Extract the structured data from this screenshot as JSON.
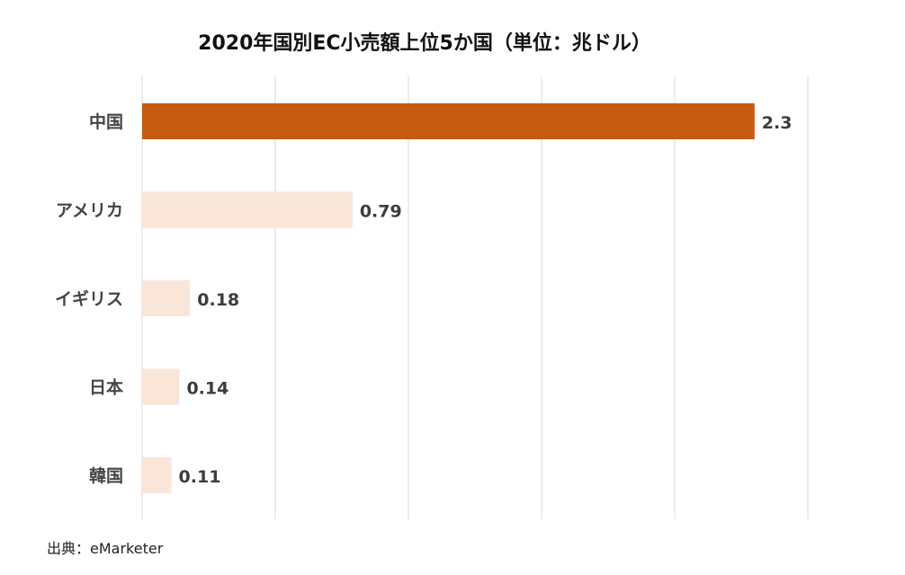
{
  "chart_data": {
    "type": "bar",
    "orientation": "horizontal",
    "title": "2020年国別EC小売額上位5か国（単位：兆ドル）",
    "categories": [
      "中国",
      "アメリカ",
      "イギリス",
      "日本",
      "韓国"
    ],
    "values": [
      2.3,
      0.79,
      0.18,
      0.14,
      0.11
    ],
    "xlim": [
      0,
      2.5
    ],
    "grid": true,
    "legend": "none",
    "colors": {
      "highlight": "#c55a11",
      "normal": "#fae5d9"
    },
    "highlight_index": 0
  },
  "source": "出典：eMarketer"
}
